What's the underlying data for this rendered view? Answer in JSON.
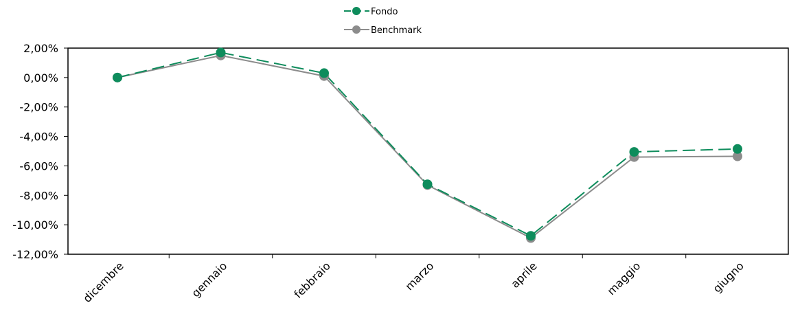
{
  "chart_data": {
    "type": "line",
    "categories": [
      "dicembre",
      "gennaio",
      "febbraio",
      "marzo",
      "aprile",
      "maggio",
      "giugno"
    ],
    "series": [
      {
        "name": "Fondo",
        "values": [
          0.0,
          1.7,
          0.3,
          -7.25,
          -10.75,
          -5.05,
          -4.85
        ],
        "color": "#0e8c5c",
        "style": "dashed"
      },
      {
        "name": "Benchmark",
        "values": [
          0.0,
          1.5,
          0.1,
          -7.3,
          -10.9,
          -5.4,
          -5.35
        ],
        "color": "#8c8c8c",
        "style": "solid"
      }
    ],
    "yticks": [
      "2,00%",
      "0,00%",
      "-2,00%",
      "-4,00%",
      "-6,00%",
      "-8,00%",
      "-10,00%",
      "-12,00%"
    ],
    "ytick_values": [
      2,
      0,
      -2,
      -4,
      -6,
      -8,
      -10,
      -12
    ],
    "ylim": [
      -12,
      2
    ],
    "legend_position": "top-center",
    "grid": false
  }
}
